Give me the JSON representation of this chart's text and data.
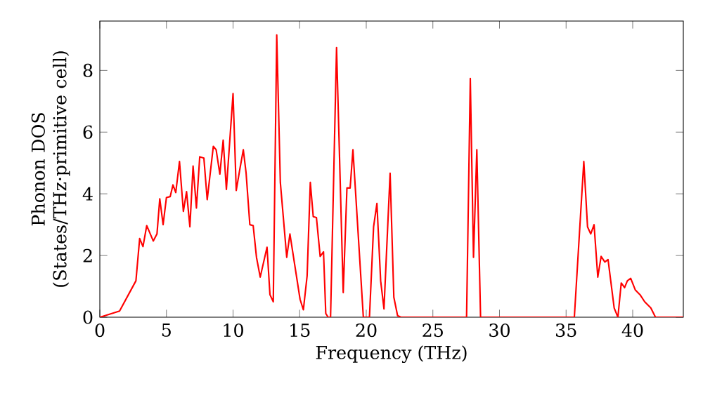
{
  "chart_data": {
    "type": "line",
    "xlabel": "Frequency (THz)",
    "ylabel": "Phonon DOS (States/THz·primitive cell)",
    "x": [
      0,
      1.48,
      2.71,
      2.99,
      3.24,
      3.52,
      4.01,
      4.29,
      4.5,
      4.75,
      5.0,
      5.28,
      5.49,
      5.7,
      5.98,
      6.27,
      6.51,
      6.76,
      7.0,
      7.25,
      7.5,
      7.81,
      8.06,
      8.52,
      8.73,
      9.01,
      9.26,
      9.5,
      10.0,
      10.24,
      10.49,
      10.77,
      10.98,
      11.26,
      11.51,
      11.76,
      12.04,
      12.55,
      12.77,
      13.02,
      13.28,
      13.55,
      14.03,
      14.27,
      15.03,
      15.28,
      15.56,
      15.8,
      16.02,
      16.26,
      16.54,
      16.79,
      16.96,
      17.14,
      17.32,
      17.77,
      18.27,
      18.55,
      18.79,
      19.0,
      19.78,
      20.24,
      20.55,
      20.8,
      21.08,
      21.33,
      21.79,
      22.07,
      22.35,
      22.6,
      27.53,
      27.81,
      28.05,
      28.3,
      28.58,
      35.62,
      36.33,
      36.61,
      36.85,
      37.1,
      37.38,
      37.63,
      37.91,
      38.15,
      38.61,
      38.89,
      39.14,
      39.39,
      39.6,
      39.85,
      40.2,
      40.55,
      40.9,
      41.36,
      41.71,
      43.8
    ],
    "series": [
      {
        "color": "#ff0000",
        "values": [
          0,
          0.2,
          1.18,
          2.55,
          2.29,
          2.97,
          2.47,
          2.7,
          3.84,
          3.0,
          3.88,
          3.91,
          4.29,
          4.04,
          5.05,
          3.43,
          4.07,
          2.93,
          4.9,
          3.54,
          5.2,
          5.16,
          3.81,
          5.54,
          5.43,
          4.64,
          5.74,
          4.14,
          7.25,
          4.11,
          4.75,
          5.43,
          4.67,
          3.0,
          2.97,
          1.94,
          1.3,
          2.27,
          0.73,
          0.5,
          9.15,
          4.37,
          1.94,
          2.7,
          0.58,
          0.24,
          1.34,
          4.37,
          3.26,
          3.23,
          1.97,
          2.12,
          0.12,
          0,
          0,
          8.74,
          0.8,
          4.19,
          4.19,
          5.43,
          0,
          0,
          2.93,
          3.69,
          1.18,
          0.27,
          4.67,
          0.65,
          0.05,
          0,
          0,
          7.74,
          1.94,
          5.43,
          0,
          0,
          5.05,
          2.93,
          2.7,
          3.0,
          1.3,
          1.97,
          1.79,
          1.87,
          0.3,
          0,
          1.11,
          0.96,
          1.18,
          1.26,
          0.88,
          0.73,
          0.5,
          0.3,
          0,
          0
        ]
      }
    ],
    "xlim": [
      0,
      43.8
    ],
    "ylim": [
      0,
      9.6
    ],
    "xticks": [
      0,
      5,
      10,
      15,
      20,
      25,
      30,
      35,
      40
    ],
    "yticks": [
      0,
      2,
      4,
      6,
      8
    ],
    "grid": false,
    "marker": "none",
    "line_style": "solid"
  }
}
